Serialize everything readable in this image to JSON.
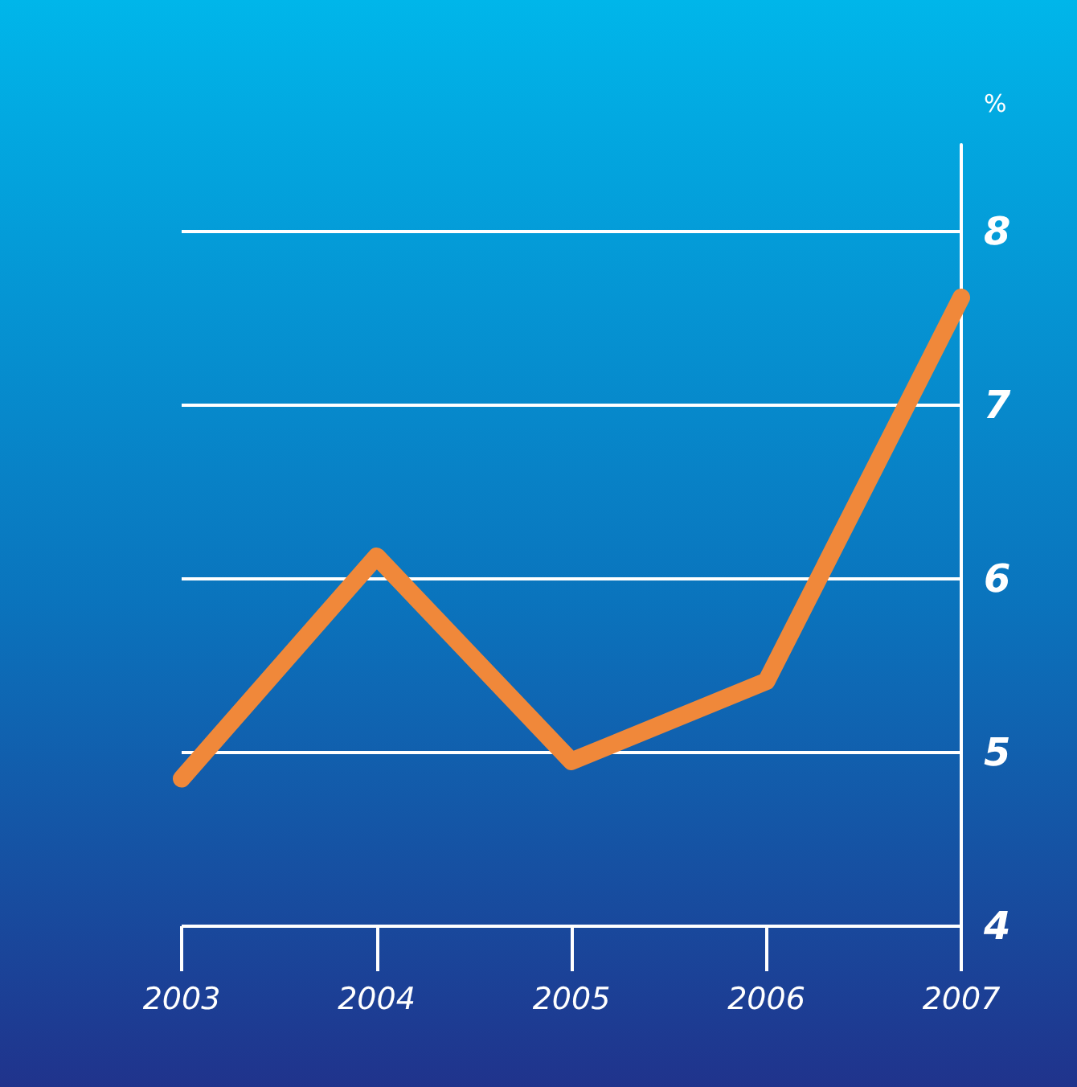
{
  "chart_data": {
    "type": "line",
    "ylabel": "%",
    "categories": [
      "2003",
      "2004",
      "2005",
      "2006",
      "2007"
    ],
    "series": [
      {
        "color": "#f0883a",
        "values": [
          4.85,
          6.13,
          4.95,
          5.41,
          7.62
        ]
      }
    ],
    "ylim": [
      4,
      8.5
    ],
    "yticks": [
      4,
      5,
      6,
      7,
      8
    ],
    "grid": "y",
    "line_style": "solid"
  }
}
